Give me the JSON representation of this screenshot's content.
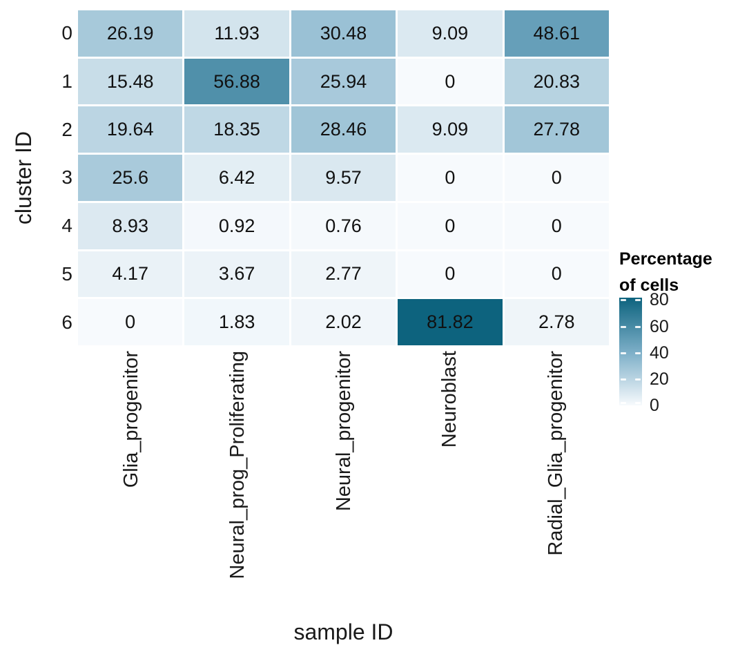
{
  "chart_data": {
    "type": "heatmap",
    "xlabel": "sample ID",
    "ylabel": "cluster ID",
    "x_categories": [
      "Glia_progenitor",
      "Neural_prog_Proliferating",
      "Neural_progenitor",
      "Neuroblast",
      "Radial_Glia_progenitor"
    ],
    "y_categories": [
      "0",
      "1",
      "2",
      "3",
      "4",
      "5",
      "6"
    ],
    "values": [
      [
        26.19,
        11.93,
        30.48,
        9.09,
        48.61
      ],
      [
        15.48,
        56.88,
        25.94,
        0,
        20.83
      ],
      [
        19.64,
        18.35,
        28.46,
        9.09,
        27.78
      ],
      [
        25.6,
        6.42,
        9.57,
        0,
        0
      ],
      [
        8.93,
        0.92,
        0.76,
        0,
        0
      ],
      [
        4.17,
        3.67,
        2.77,
        0,
        0
      ],
      [
        0,
        1.83,
        2.02,
        81.82,
        2.78
      ]
    ],
    "color_scale": {
      "domain": [
        0,
        81.82
      ],
      "stops": [
        {
          "value": 0,
          "color": "#f7fafd"
        },
        {
          "value": 40,
          "color": "#7dafc8"
        },
        {
          "value": 81.82,
          "color": "#0d637e"
        }
      ]
    },
    "legend": {
      "title_lines": [
        "Percentage",
        "of cells"
      ],
      "ticks": [
        80,
        60,
        40,
        20,
        0
      ],
      "position": "right"
    },
    "grid": false,
    "value_text_color": "#111111"
  }
}
